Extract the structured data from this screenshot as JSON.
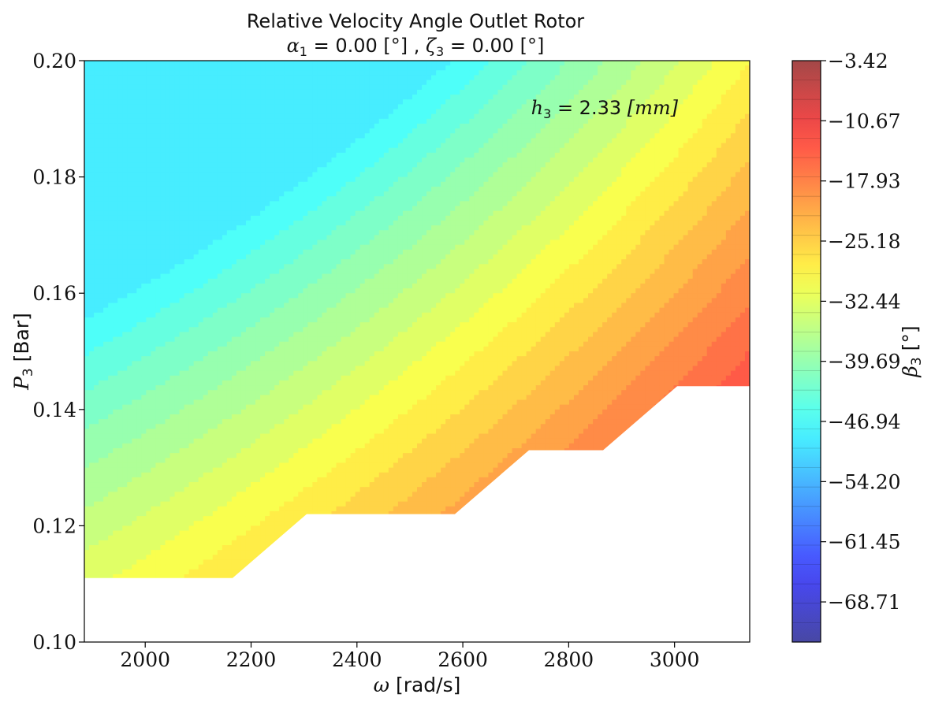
{
  "chart_data": {
    "type": "contour",
    "title": {
      "line1": "Relative Velocity Angle Outlet Rotor",
      "line2": {
        "alpha_symbol": "α",
        "alpha_sub": "1",
        "alpha_text": " = 0.00 [°] , ",
        "zeta_symbol": "ζ",
        "zeta_sub": "3",
        "zeta_text": " = 0.00 [°]"
      }
    },
    "xlabel": {
      "symbol": "ω",
      "text": " [rad/s]"
    },
    "ylabel": {
      "symbol": "P",
      "sub": "3",
      "text": " [Bar]"
    },
    "colorbar_label": {
      "symbol": "β",
      "sub": "3",
      "text": " [°]"
    },
    "annotation": {
      "symbol": "h",
      "sub": "3",
      "mid": " = 2.33 ",
      "unit": "[mm]"
    },
    "xlim": [
      1885,
      3142
    ],
    "ylim": [
      0.1,
      0.2
    ],
    "xticks": [
      2000,
      2200,
      2400,
      2600,
      2800,
      3000
    ],
    "yticks": [
      0.1,
      0.12,
      0.14,
      0.16,
      0.18,
      0.2
    ],
    "ytick_labels": [
      "0.10",
      "0.12",
      "0.14",
      "0.16",
      "0.18",
      "0.20"
    ],
    "colorbar_range": [
      -73.55,
      -3.42
    ],
    "colorbar_ticks": [
      -3.42,
      -10.67,
      -17.93,
      -25.18,
      -32.44,
      -39.69,
      -46.94,
      -54.2,
      -61.45,
      -68.71
    ],
    "colorbar_tick_labels": [
      "−3.42",
      "−10.67",
      "−17.93",
      "−25.18",
      "−32.44",
      "−39.69",
      "−46.94",
      "−54.20",
      "−61.45",
      "−68.71"
    ],
    "colormap": "jet",
    "levels": 30,
    "value_range_shown": [
      -50,
      -12
    ],
    "minimum_pressure_boundary": [
      {
        "x": 1885,
        "y": 0.111
      },
      {
        "x": 2165,
        "y": 0.111
      },
      {
        "x": 2305,
        "y": 0.122
      },
      {
        "x": 2585,
        "y": 0.122
      },
      {
        "x": 2725,
        "y": 0.133
      },
      {
        "x": 2865,
        "y": 0.133
      },
      {
        "x": 3005,
        "y": 0.144
      },
      {
        "x": 3142,
        "y": 0.144
      }
    ]
  }
}
